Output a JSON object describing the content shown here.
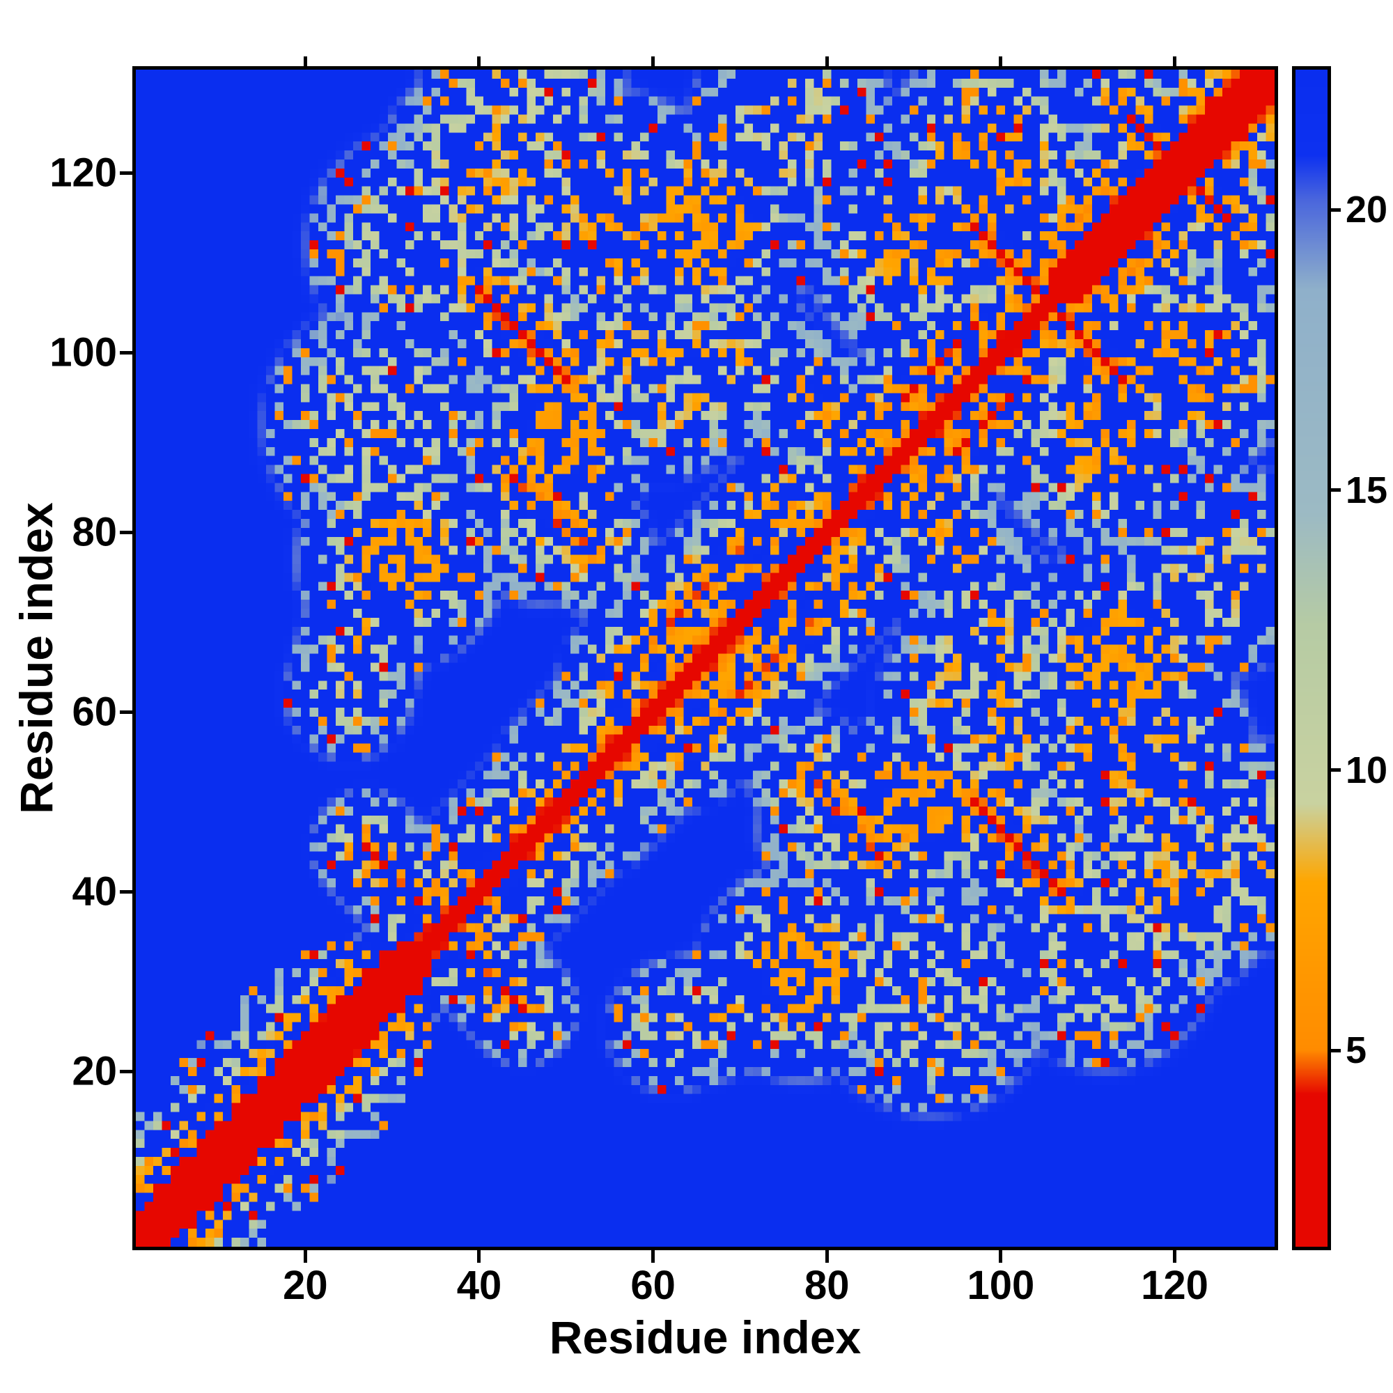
{
  "colors": {
    "background": "#ffffff",
    "frame": "#000000",
    "text": "#000000"
  },
  "chart_data": {
    "type": "heatmap",
    "title": "",
    "xlabel": "Residue index",
    "ylabel": "Residue index",
    "n_residues": 131,
    "x_ticks": [
      20,
      40,
      60,
      80,
      100,
      120
    ],
    "y_ticks": [
      20,
      40,
      60,
      80,
      100,
      120
    ],
    "x_range": [
      0.5,
      131.5
    ],
    "y_range": [
      0.5,
      131.5
    ],
    "colorbar": {
      "ticks": [
        5,
        10,
        15,
        20
      ],
      "vmin": 1.5,
      "vmax": 22.5
    },
    "legend_position": "right-colorbar",
    "grid": false,
    "description": "Symmetric residue-residue distance map: red diagonal (small distances), orange/green contact bands and antidiagonal beta-sheet streaks, deep blue for distances beyond ~20.",
    "colormap_stops": [
      {
        "v": 1.5,
        "c": "#e60700"
      },
      {
        "v": 4.2,
        "c": "#e60700"
      },
      {
        "v": 5.0,
        "c": "#ff8c00"
      },
      {
        "v": 8.0,
        "c": "#ffa600"
      },
      {
        "v": 9.4,
        "c": "#c9d2a0"
      },
      {
        "v": 12.6,
        "c": "#b6cba4"
      },
      {
        "v": 14.6,
        "c": "#9cbac4"
      },
      {
        "v": 18.6,
        "c": "#8fb0ca"
      },
      {
        "v": 20.2,
        "c": "#4a66dd"
      },
      {
        "v": 21.0,
        "c": "#0d31f0"
      },
      {
        "v": 22.5,
        "c": "#0a2eef"
      }
    ],
    "matrix_generator": {
      "base": {
        "intercept": 1.2,
        "slope": 2.1,
        "cap": 22.5
      },
      "helix_regions": [
        {
          "start": 1,
          "end": 34,
          "slope": 1.35,
          "stripe_period": 3.6,
          "stripe_depth": 2.5
        },
        {
          "start": 106,
          "end": 131,
          "slope": 1.5,
          "stripe_period": 3.6,
          "stripe_depth": 2.2
        }
      ],
      "contacts": [
        {
          "type": "seg",
          "x1": 40,
          "y1": 107,
          "x2": 50,
          "y2": 97,
          "dmin": 4.2,
          "falloff": 2.0
        },
        {
          "type": "seg",
          "x1": 44,
          "y1": 86,
          "x2": 53,
          "y2": 78,
          "dmin": 4.5,
          "falloff": 2.2
        },
        {
          "type": "seg",
          "x1": 56,
          "y1": 64,
          "x2": 76,
          "y2": 84,
          "dmin": 5.0,
          "falloff": 2.2
        },
        {
          "type": "seg",
          "x1": 86,
          "y1": 92,
          "x2": 97,
          "y2": 103,
          "dmin": 4.5,
          "falloff": 2.2
        },
        {
          "type": "seg",
          "x1": 97,
          "y1": 114,
          "x2": 108,
          "y2": 103,
          "dmin": 4.2,
          "falloff": 2.0
        },
        {
          "type": "seg",
          "x1": 27,
          "y1": 45,
          "x2": 34,
          "y2": 38,
          "dmin": 5.0,
          "falloff": 2.4
        },
        {
          "type": "seg",
          "x1": 25,
          "y1": 62,
          "x2": 28,
          "y2": 73,
          "dmin": 8.5,
          "falloff": 1.6
        },
        {
          "type": "seg",
          "x1": 47,
          "y1": 80,
          "x2": 47,
          "y2": 104,
          "dmin": 9.0,
          "falloff": 1.4
        },
        {
          "type": "blob",
          "cx": 50,
          "cy": 91,
          "r": 4,
          "dmin": 7.5,
          "falloff": 1.8
        },
        {
          "type": "seg",
          "x1": 55,
          "y1": 100,
          "x2": 70,
          "y2": 100,
          "dmin": 8.0,
          "falloff": 1.4
        },
        {
          "type": "seg",
          "x1": 50,
          "y1": 53,
          "x2": 80,
          "y2": 83,
          "dmin": 7.0,
          "falloff": 1.6
        },
        {
          "type": "seg",
          "x1": 84,
          "y1": 87,
          "x2": 102,
          "y2": 105,
          "dmin": 7.0,
          "falloff": 1.6
        },
        {
          "type": "seg",
          "x1": 35,
          "y1": 38,
          "x2": 48,
          "y2": 51,
          "dmin": 7.5,
          "falloff": 1.7
        },
        {
          "type": "seg",
          "x1": 103,
          "y1": 109,
          "x2": 113,
          "y2": 119,
          "dmin": 6.0,
          "falloff": 1.8
        },
        {
          "type": "seg",
          "x1": 114,
          "y1": 127,
          "x2": 125,
          "y2": 116,
          "dmin": 5.0,
          "falloff": 2.0
        },
        {
          "type": "seg",
          "x1": 77,
          "y1": 96,
          "x2": 84,
          "y2": 89,
          "dmin": 6.5,
          "falloff": 2.0
        },
        {
          "type": "blob",
          "cx": 31,
          "cy": 77,
          "r": 4.5,
          "dmin": 8.0,
          "falloff": 1.6
        },
        {
          "type": "blob",
          "cx": 66,
          "cy": 114,
          "r": 5,
          "dmin": 8.0,
          "falloff": 1.5
        },
        {
          "type": "blob",
          "cx": 90,
          "cy": 112,
          "r": 5,
          "dmin": 8.5,
          "falloff": 1.5
        },
        {
          "type": "blob",
          "cx": 56,
          "cy": 115,
          "r": 6,
          "dmin": 9.0,
          "falloff": 1.4
        },
        {
          "type": "blob",
          "cx": 99,
          "cy": 122,
          "r": 5,
          "dmin": 8.5,
          "falloff": 1.5
        },
        {
          "type": "blob",
          "cx": 41,
          "cy": 120,
          "r": 5,
          "dmin": 9.5,
          "falloff": 1.4
        },
        {
          "type": "blob",
          "cx": 29,
          "cy": 92,
          "r": 7,
          "dmin": 12.0,
          "falloff": 1.2
        },
        {
          "type": "blob",
          "cx": 33,
          "cy": 112,
          "r": 6,
          "dmin": 12.0,
          "falloff": 1.2
        },
        {
          "type": "blob",
          "cx": 45,
          "cy": 128,
          "r": 5,
          "dmin": 11.0,
          "falloff": 1.3
        },
        {
          "type": "blob",
          "cx": 76,
          "cy": 125,
          "r": 5,
          "dmin": 11.0,
          "falloff": 1.3
        },
        {
          "type": "seg",
          "x1": 61,
          "y1": 93,
          "x2": 72,
          "y2": 97,
          "dmin": 9.0,
          "falloff": 1.5
        }
      ],
      "speckle": {
        "seed": 7,
        "blue_prob": 0.13,
        "orange_prob": 0.05
      }
    }
  }
}
